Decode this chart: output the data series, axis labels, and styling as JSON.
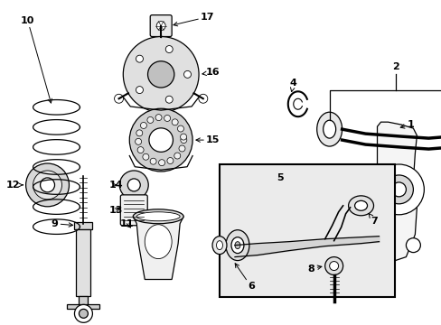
{
  "background_color": "#ffffff",
  "line_color": "#000000",
  "label_fontsize": 8,
  "box_bg": "#ebebeb"
}
